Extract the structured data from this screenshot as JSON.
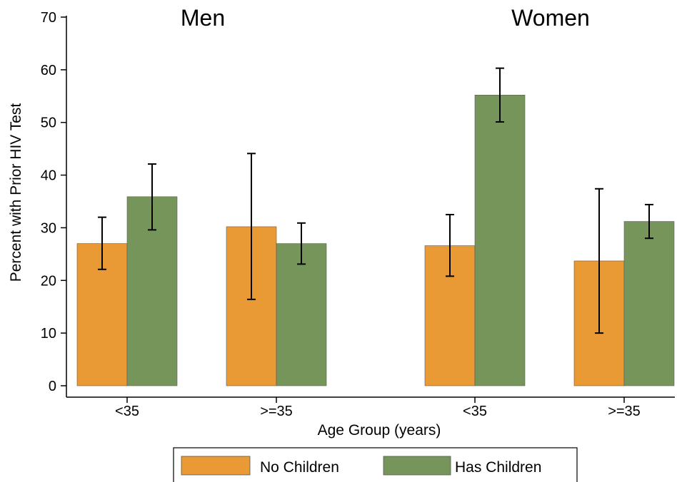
{
  "chart_data": {
    "type": "bar",
    "ylabel": "Percent with Prior HIV Test",
    "xlabel": "Age Group (years)",
    "ylim": [
      0,
      70
    ],
    "yticks": [
      0,
      10,
      20,
      30,
      40,
      50,
      60,
      70
    ],
    "grid": false,
    "legend_position": "bottom",
    "series": [
      {
        "name": "No Children",
        "color": "#e99a34"
      },
      {
        "name": "Has Children",
        "color": "#76955a"
      }
    ],
    "panels": [
      {
        "title": "Men",
        "groups": [
          {
            "category": "<35",
            "bars": [
              {
                "series": 0,
                "value": 27.0,
                "ci": [
                  22.1,
                  32.0
                ]
              },
              {
                "series": 1,
                "value": 35.9,
                "ci": [
                  29.6,
                  42.1
                ]
              }
            ]
          },
          {
            "category": ">=35",
            "bars": [
              {
                "series": 0,
                "value": 30.2,
                "ci": [
                  16.4,
                  44.1
                ]
              },
              {
                "series": 1,
                "value": 27.0,
                "ci": [
                  23.1,
                  30.9
                ]
              }
            ]
          }
        ]
      },
      {
        "title": "Women",
        "groups": [
          {
            "category": "<35",
            "bars": [
              {
                "series": 0,
                "value": 26.6,
                "ci": [
                  20.8,
                  32.5
                ]
              },
              {
                "series": 1,
                "value": 55.2,
                "ci": [
                  50.1,
                  60.3
                ]
              }
            ]
          },
          {
            "category": ">=35",
            "bars": [
              {
                "series": 0,
                "value": 23.7,
                "ci": [
                  10.0,
                  37.4
                ]
              },
              {
                "series": 1,
                "value": 31.2,
                "ci": [
                  28.0,
                  34.4
                ]
              }
            ]
          }
        ]
      }
    ]
  }
}
